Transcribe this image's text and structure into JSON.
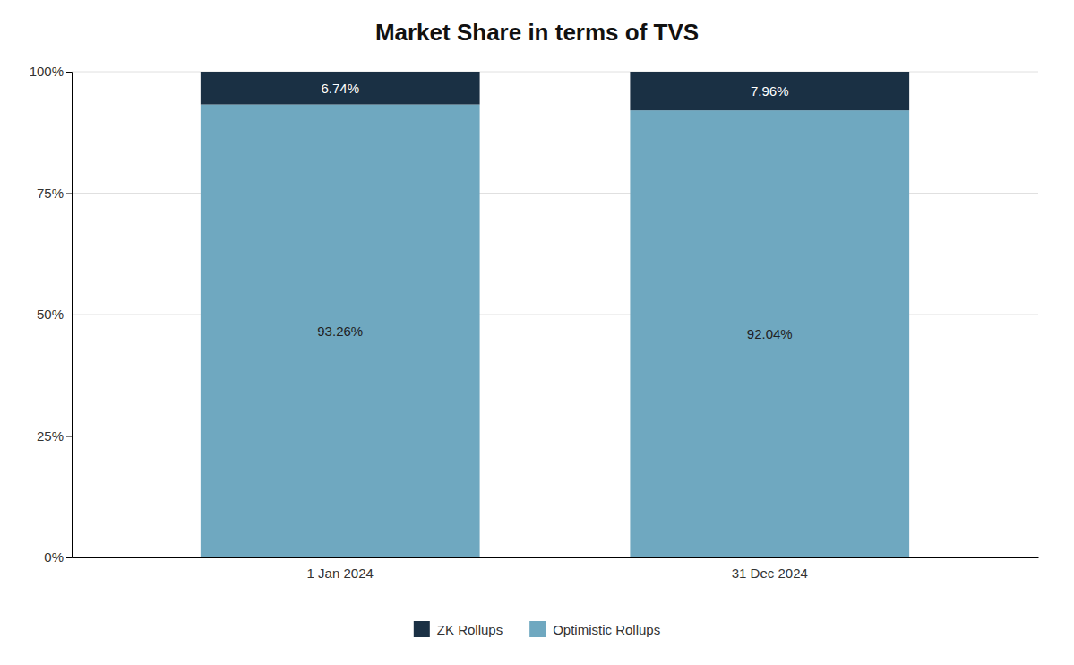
{
  "chart_data": {
    "type": "bar",
    "title": "Market Share in terms of TVS",
    "categories": [
      "1 Jan 2024",
      "31 Dec 2024"
    ],
    "stacked": true,
    "series": [
      {
        "name": "Optimistic Rollups",
        "color": "#6fa8c0",
        "values": [
          93.26,
          92.04
        ],
        "value_labels": [
          "93.26%",
          "92.04%"
        ]
      },
      {
        "name": "ZK Rollups",
        "color": "#1a3044",
        "values": [
          6.74,
          7.96
        ],
        "value_labels": [
          "6.74%",
          "7.96%"
        ]
      }
    ],
    "ylim": [
      0,
      100
    ],
    "yticks": [
      {
        "value": 0,
        "label": "0%"
      },
      {
        "value": 25,
        "label": "25%"
      },
      {
        "value": 50,
        "label": "50%"
      },
      {
        "value": 75,
        "label": "75%"
      },
      {
        "value": 100,
        "label": "100%"
      }
    ],
    "grid": true,
    "data_labels": true,
    "legend": "bottom"
  }
}
